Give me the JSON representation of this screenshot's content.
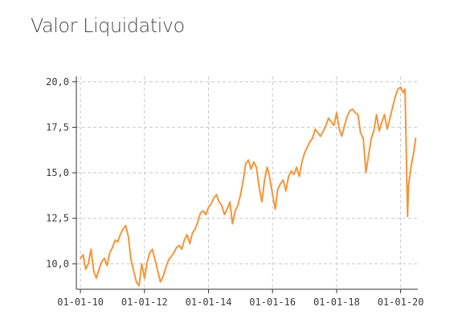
{
  "page_title": "Valor Liquidativo",
  "chart_data": {
    "type": "line",
    "title": "Valor Liquidativo",
    "xlabel": "",
    "ylabel": "",
    "x_ticks": [
      "01-01-10",
      "01-01-12",
      "01-01-14",
      "01-01-16",
      "01-01-18",
      "01-01-20"
    ],
    "y_ticks": [
      "10,0",
      "12,5",
      "15,0",
      "17,5",
      "20,0"
    ],
    "xlim": [
      "2009-11-15",
      "2020-07-15"
    ],
    "ylim": [
      8.6,
      20.3
    ],
    "grid": true,
    "series": [
      {
        "color": "#f5953a",
        "points": [
          [
            "2010-01-01",
            10.3
          ],
          [
            "2010-02-01",
            10.5
          ],
          [
            "2010-03-01",
            9.7
          ],
          [
            "2010-04-01",
            10.0
          ],
          [
            "2010-05-01",
            10.8
          ],
          [
            "2010-06-01",
            9.6
          ],
          [
            "2010-07-01",
            9.2
          ],
          [
            "2010-08-01",
            9.7
          ],
          [
            "2010-09-01",
            10.1
          ],
          [
            "2010-10-01",
            10.3
          ],
          [
            "2010-11-01",
            9.9
          ],
          [
            "2010-12-01",
            10.6
          ],
          [
            "2011-01-01",
            10.9
          ],
          [
            "2011-02-01",
            11.3
          ],
          [
            "2011-03-01",
            11.2
          ],
          [
            "2011-04-01",
            11.6
          ],
          [
            "2011-05-01",
            11.9
          ],
          [
            "2011-06-01",
            12.1
          ],
          [
            "2011-07-01",
            11.5
          ],
          [
            "2011-08-01",
            10.2
          ],
          [
            "2011-09-01",
            9.6
          ],
          [
            "2011-10-01",
            9.0
          ],
          [
            "2011-11-01",
            8.8
          ],
          [
            "2011-12-01",
            10.0
          ],
          [
            "2012-01-01",
            9.2
          ],
          [
            "2012-02-01",
            10.1
          ],
          [
            "2012-03-01",
            10.6
          ],
          [
            "2012-04-01",
            10.8
          ],
          [
            "2012-05-01",
            10.2
          ],
          [
            "2012-06-01",
            9.6
          ],
          [
            "2012-07-01",
            9.0
          ],
          [
            "2012-08-01",
            9.3
          ],
          [
            "2012-09-01",
            9.8
          ],
          [
            "2012-10-01",
            10.2
          ],
          [
            "2012-11-01",
            10.4
          ],
          [
            "2012-12-01",
            10.6
          ],
          [
            "2013-01-01",
            10.9
          ],
          [
            "2013-02-01",
            11.0
          ],
          [
            "2013-03-01",
            10.8
          ],
          [
            "2013-04-01",
            11.3
          ],
          [
            "2013-05-01",
            11.6
          ],
          [
            "2013-06-01",
            11.1
          ],
          [
            "2013-07-01",
            11.7
          ],
          [
            "2013-08-01",
            11.9
          ],
          [
            "2013-09-01",
            12.3
          ],
          [
            "2013-10-01",
            12.8
          ],
          [
            "2013-11-01",
            12.9
          ],
          [
            "2013-12-01",
            12.7
          ],
          [
            "2014-01-01",
            13.1
          ],
          [
            "2014-02-01",
            13.3
          ],
          [
            "2014-03-01",
            13.6
          ],
          [
            "2014-04-01",
            13.8
          ],
          [
            "2014-05-01",
            13.4
          ],
          [
            "2014-06-01",
            13.2
          ],
          [
            "2014-07-01",
            12.7
          ],
          [
            "2014-08-01",
            13.0
          ],
          [
            "2014-09-01",
            13.4
          ],
          [
            "2014-10-01",
            12.2
          ],
          [
            "2014-11-01",
            12.9
          ],
          [
            "2014-12-01",
            13.2
          ],
          [
            "2015-01-01",
            13.8
          ],
          [
            "2015-02-01",
            14.6
          ],
          [
            "2015-03-01",
            15.5
          ],
          [
            "2015-04-01",
            15.7
          ],
          [
            "2015-05-01",
            15.2
          ],
          [
            "2015-06-01",
            15.6
          ],
          [
            "2015-07-01",
            15.3
          ],
          [
            "2015-08-01",
            14.2
          ],
          [
            "2015-09-01",
            13.4
          ],
          [
            "2015-10-01",
            14.6
          ],
          [
            "2015-11-01",
            15.3
          ],
          [
            "2015-12-01",
            14.7
          ],
          [
            "2016-01-01",
            13.8
          ],
          [
            "2016-02-01",
            13.0
          ],
          [
            "2016-03-01",
            14.1
          ],
          [
            "2016-04-01",
            14.4
          ],
          [
            "2016-05-01",
            14.6
          ],
          [
            "2016-06-01",
            14.0
          ],
          [
            "2016-07-01",
            14.8
          ],
          [
            "2016-08-01",
            15.1
          ],
          [
            "2016-09-01",
            14.9
          ],
          [
            "2016-10-01",
            15.3
          ],
          [
            "2016-11-01",
            14.8
          ],
          [
            "2016-12-01",
            15.6
          ],
          [
            "2017-01-01",
            16.1
          ],
          [
            "2017-02-01",
            16.4
          ],
          [
            "2017-03-01",
            16.7
          ],
          [
            "2017-04-01",
            16.9
          ],
          [
            "2017-05-01",
            17.4
          ],
          [
            "2017-06-01",
            17.2
          ],
          [
            "2017-07-01",
            17.0
          ],
          [
            "2017-08-01",
            17.3
          ],
          [
            "2017-09-01",
            17.6
          ],
          [
            "2017-10-01",
            18.0
          ],
          [
            "2017-11-01",
            17.8
          ],
          [
            "2017-12-01",
            17.6
          ],
          [
            "2018-01-01",
            18.3
          ],
          [
            "2018-02-01",
            17.4
          ],
          [
            "2018-03-01",
            17.0
          ],
          [
            "2018-04-01",
            17.6
          ],
          [
            "2018-05-01",
            18.1
          ],
          [
            "2018-06-01",
            18.4
          ],
          [
            "2018-07-01",
            18.5
          ],
          [
            "2018-08-01",
            18.3
          ],
          [
            "2018-09-01",
            18.2
          ],
          [
            "2018-10-01",
            17.2
          ],
          [
            "2018-11-01",
            16.9
          ],
          [
            "2018-12-01",
            15.0
          ],
          [
            "2019-01-01",
            16.0
          ],
          [
            "2019-02-01",
            16.9
          ],
          [
            "2019-03-01",
            17.3
          ],
          [
            "2019-04-01",
            18.2
          ],
          [
            "2019-05-01",
            17.3
          ],
          [
            "2019-06-01",
            17.8
          ],
          [
            "2019-07-01",
            18.2
          ],
          [
            "2019-08-01",
            17.4
          ],
          [
            "2019-09-01",
            18.0
          ],
          [
            "2019-10-01",
            18.6
          ],
          [
            "2019-11-01",
            19.2
          ],
          [
            "2019-12-01",
            19.6
          ],
          [
            "2020-01-01",
            19.7
          ],
          [
            "2020-02-01",
            19.4
          ],
          [
            "2020-02-20",
            19.6
          ],
          [
            "2020-03-01",
            17.2
          ],
          [
            "2020-03-20",
            12.6
          ],
          [
            "2020-04-01",
            14.3
          ],
          [
            "2020-05-01",
            15.4
          ],
          [
            "2020-06-01",
            16.2
          ],
          [
            "2020-06-20",
            16.9
          ]
        ]
      }
    ]
  }
}
